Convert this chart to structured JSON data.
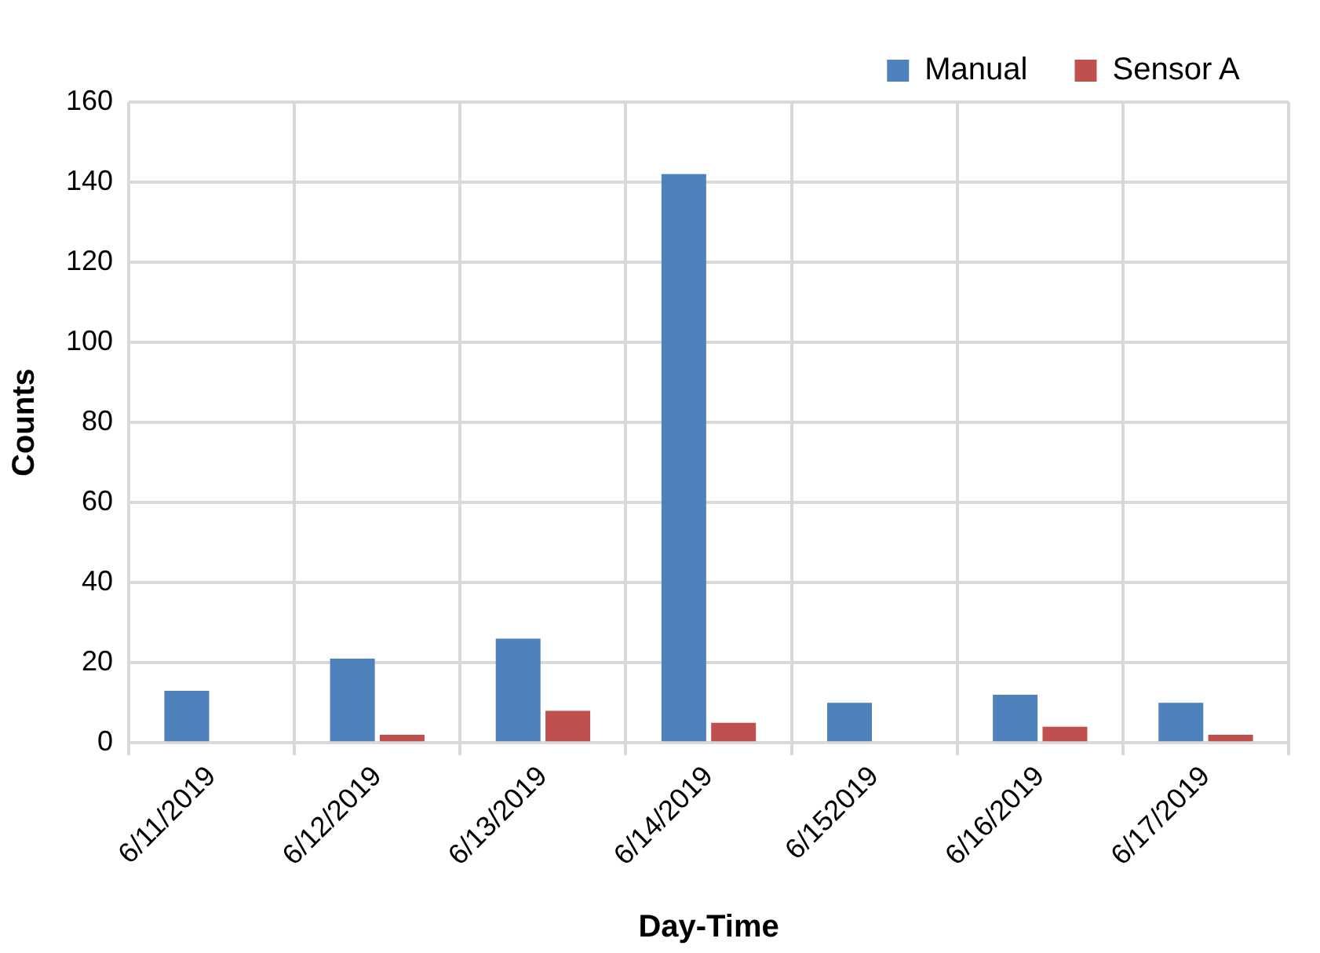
{
  "chart_data": {
    "type": "bar",
    "xlabel": "Day-Time",
    "ylabel": "Counts",
    "categories": [
      "6/11/2019",
      "6/12/2019",
      "6/13/2019",
      "6/14/2019",
      "6/152019",
      "6/16/2019",
      "6/17/2019"
    ],
    "series": [
      {
        "name": "Manual",
        "color": "#4f81bd",
        "values": [
          13,
          21,
          26,
          142,
          10,
          12,
          10
        ]
      },
      {
        "name": "Sensor A",
        "color": "#c0504d",
        "values": [
          0,
          2,
          8,
          5,
          0,
          4,
          2
        ]
      }
    ],
    "ylim": [
      0,
      160
    ],
    "yticks": [
      0,
      20,
      40,
      60,
      80,
      100,
      120,
      140,
      160
    ],
    "grid": true,
    "legend": "top right"
  }
}
